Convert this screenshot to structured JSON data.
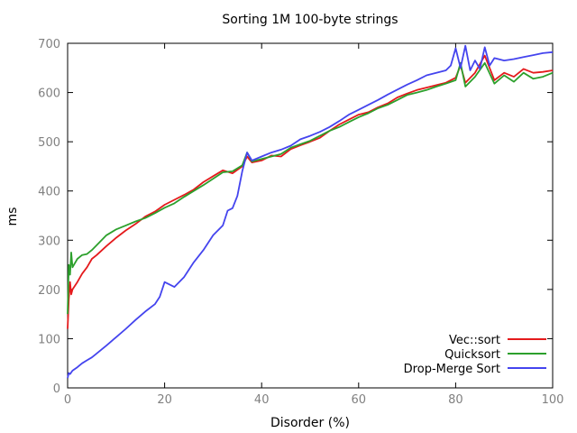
{
  "chart_data": {
    "type": "line",
    "title": "Sorting 1M 100-byte strings",
    "xlabel": "Disorder (%)",
    "ylabel": "ms",
    "xlim": [
      0,
      100
    ],
    "ylim": [
      0,
      700
    ],
    "xticks": [
      "0",
      "20",
      "40",
      "60",
      "80",
      "100"
    ],
    "yticks": [
      "0",
      "100",
      "200",
      "300",
      "400",
      "500",
      "600",
      "700"
    ],
    "grid": false,
    "legend_position": "bottom-right",
    "series": [
      {
        "name": "Vec::sort",
        "color": "#e41a1c",
        "x": [
          0,
          0.25,
          0.5,
          0.75,
          1,
          2,
          3,
          4,
          5,
          6,
          8,
          10,
          12,
          14,
          16,
          18,
          20,
          22,
          24,
          26,
          28,
          30,
          32,
          34,
          36,
          37,
          38,
          40,
          42,
          44,
          46,
          48,
          50,
          52,
          54,
          56,
          58,
          60,
          62,
          64,
          66,
          68,
          70,
          72,
          74,
          76,
          78,
          80,
          81,
          82,
          84,
          86,
          88,
          90,
          92,
          94,
          96,
          98,
          100
        ],
        "y": [
          120,
          180,
          215,
          190,
          200,
          215,
          232,
          245,
          262,
          270,
          288,
          305,
          320,
          333,
          348,
          358,
          372,
          382,
          392,
          403,
          418,
          430,
          442,
          436,
          450,
          470,
          458,
          462,
          472,
          470,
          485,
          493,
          500,
          508,
          522,
          535,
          545,
          555,
          560,
          570,
          578,
          590,
          598,
          605,
          610,
          615,
          620,
          630,
          655,
          620,
          640,
          675,
          625,
          640,
          632,
          648,
          640,
          642,
          645
        ]
      },
      {
        "name": "Quicksort",
        "color": "#2ca02c",
        "x": [
          0,
          0.25,
          0.5,
          0.75,
          1,
          2,
          3,
          4,
          5,
          6,
          8,
          10,
          12,
          14,
          16,
          18,
          20,
          22,
          24,
          26,
          28,
          30,
          32,
          34,
          36,
          37,
          38,
          40,
          42,
          44,
          46,
          48,
          50,
          52,
          54,
          56,
          58,
          60,
          62,
          64,
          66,
          68,
          70,
          72,
          74,
          76,
          78,
          80,
          81,
          82,
          84,
          86,
          88,
          90,
          92,
          94,
          96,
          98,
          100
        ],
        "y": [
          150,
          250,
          230,
          275,
          245,
          262,
          270,
          272,
          280,
          290,
          310,
          322,
          330,
          338,
          345,
          355,
          366,
          375,
          388,
          400,
          412,
          425,
          438,
          440,
          452,
          478,
          460,
          465,
          470,
          475,
          488,
          495,
          502,
          512,
          522,
          530,
          540,
          550,
          558,
          568,
          575,
          585,
          595,
          600,
          605,
          612,
          618,
          625,
          660,
          612,
          632,
          660,
          618,
          635,
          622,
          640,
          628,
          632,
          640
        ]
      },
      {
        "name": "Drop-Merge Sort",
        "color": "#4444ee",
        "x": [
          0,
          0.25,
          0.5,
          1,
          2,
          3,
          4,
          5,
          6,
          8,
          10,
          12,
          14,
          16,
          18,
          19,
          20,
          22,
          24,
          26,
          28,
          30,
          32,
          33,
          34,
          35,
          36,
          37,
          38,
          40,
          42,
          44,
          46,
          48,
          50,
          52,
          54,
          56,
          58,
          60,
          62,
          64,
          66,
          68,
          70,
          72,
          74,
          76,
          78,
          79,
          80,
          81,
          82,
          83,
          84,
          85,
          86,
          87,
          88,
          90,
          92,
          94,
          96,
          98,
          100
        ],
        "y": [
          20,
          30,
          28,
          35,
          42,
          50,
          56,
          62,
          70,
          86,
          103,
          120,
          138,
          155,
          170,
          185,
          215,
          205,
          225,
          255,
          280,
          310,
          330,
          360,
          365,
          390,
          440,
          478,
          462,
          470,
          478,
          484,
          492,
          505,
          512,
          520,
          530,
          542,
          555,
          565,
          575,
          585,
          596,
          606,
          616,
          625,
          635,
          640,
          645,
          655,
          690,
          650,
          695,
          645,
          665,
          648,
          692,
          655,
          670,
          665,
          668,
          672,
          676,
          680,
          682
        ]
      }
    ]
  }
}
